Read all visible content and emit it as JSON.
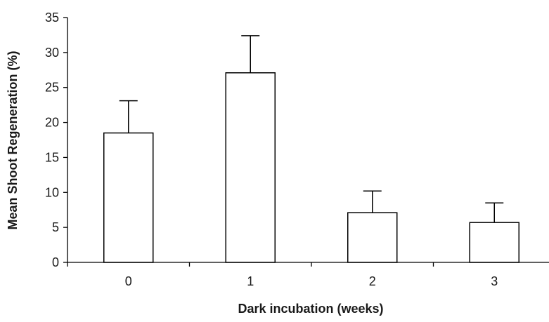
{
  "chart_data": {
    "type": "bar",
    "categories": [
      "0",
      "1",
      "2",
      "3"
    ],
    "values": [
      18.5,
      27.1,
      7.1,
      5.7
    ],
    "error_upper": [
      4.6,
      5.3,
      3.1,
      2.8
    ],
    "xlabel": "Dark incubation (weeks)",
    "ylabel": "Mean Shoot Regeneration (%)",
    "ylim": [
      0,
      35
    ],
    "yticks": [
      "0",
      "5",
      "10",
      "15",
      "20",
      "25",
      "30",
      "35"
    ],
    "grid": false,
    "legend": "none",
    "bar_fill": "#ffffff",
    "bar_stroke": "#000000"
  }
}
